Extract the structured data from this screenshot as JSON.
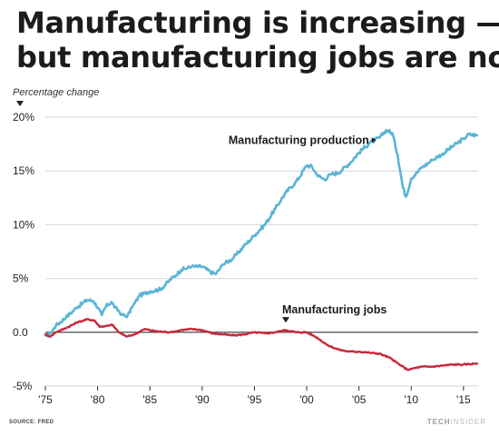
{
  "headline": {
    "line1": "Manufacturing is increasing —",
    "line2": "but manufacturing jobs are not"
  },
  "footer": {
    "source": "SOURCE: FRED",
    "brand_part1": "TECH",
    "brand_part2": "INSIDER"
  },
  "chart_data": {
    "type": "line",
    "ylabel": "Percentage change",
    "ylim": [
      -5,
      20
    ],
    "yticks": [
      {
        "value": 20,
        "label": "20%"
      },
      {
        "value": 15,
        "label": "15%"
      },
      {
        "value": 10,
        "label": "10%"
      },
      {
        "value": 5,
        "label": "5%"
      },
      {
        "value": 0,
        "label": "0.0"
      },
      {
        "value": -5,
        "label": "-5%"
      }
    ],
    "xlim": [
      1975,
      2016.4
    ],
    "xticks": [
      {
        "value": 1975,
        "label": "'75"
      },
      {
        "value": 1980,
        "label": "'80"
      },
      {
        "value": 1985,
        "label": "'85"
      },
      {
        "value": 1990,
        "label": "'90"
      },
      {
        "value": 1995,
        "label": "'95"
      },
      {
        "value": 2000,
        "label": "'00"
      },
      {
        "value": 2005,
        "label": "'05"
      },
      {
        "value": 2010,
        "label": "'10"
      },
      {
        "value": 2015,
        "label": "'15"
      }
    ],
    "grid": "horizontal",
    "series": [
      {
        "name": "Manufacturing production",
        "color": "#5ab4d6",
        "annotation": {
          "x": 2007.7,
          "y": 18.2,
          "text": "Manufacturing production",
          "arrow": "right"
        },
        "points": [
          [
            1975,
            -0.3
          ],
          [
            1975.5,
            -0.1
          ],
          [
            1976,
            0.6
          ],
          [
            1977,
            1.4
          ],
          [
            1978,
            2.3
          ],
          [
            1979,
            3.0
          ],
          [
            1979.6,
            2.9
          ],
          [
            1980,
            2.3
          ],
          [
            1980.4,
            1.6
          ],
          [
            1980.8,
            2.4
          ],
          [
            1981.3,
            2.8
          ],
          [
            1981.7,
            2.3
          ],
          [
            1982.3,
            1.7
          ],
          [
            1982.8,
            1.4
          ],
          [
            1983.3,
            2.3
          ],
          [
            1984,
            3.4
          ],
          [
            1985,
            3.8
          ],
          [
            1986,
            4.0
          ],
          [
            1987,
            4.9
          ],
          [
            1988,
            5.8
          ],
          [
            1989,
            6.1
          ],
          [
            1990,
            6.1
          ],
          [
            1990.8,
            5.6
          ],
          [
            1991.3,
            5.4
          ],
          [
            1992,
            6.3
          ],
          [
            1993,
            6.9
          ],
          [
            1994,
            8.0
          ],
          [
            1995,
            9.0
          ],
          [
            1996,
            10.0
          ],
          [
            1997,
            11.5
          ],
          [
            1998,
            13.0
          ],
          [
            1999,
            14.0
          ],
          [
            2000,
            15.5
          ],
          [
            2000.5,
            15.4
          ],
          [
            2001,
            14.6
          ],
          [
            2001.7,
            14.2
          ],
          [
            2002.3,
            14.7
          ],
          [
            2003,
            14.8
          ],
          [
            2004,
            15.6
          ],
          [
            2005,
            16.7
          ],
          [
            2006,
            17.6
          ],
          [
            2007,
            18.1
          ],
          [
            2007.6,
            18.8
          ],
          [
            2008.2,
            18.5
          ],
          [
            2008.7,
            16.5
          ],
          [
            2009.2,
            13.5
          ],
          [
            2009.5,
            12.6
          ],
          [
            2010,
            14.3
          ],
          [
            2011,
            15.3
          ],
          [
            2012,
            16.0
          ],
          [
            2013,
            16.6
          ],
          [
            2014,
            17.3
          ],
          [
            2015,
            18.0
          ],
          [
            2015.5,
            18.4
          ],
          [
            2016.3,
            18.3
          ]
        ]
      },
      {
        "name": "Manufacturing jobs",
        "color": "#c8283a",
        "annotation": {
          "x": 1998,
          "y": 0.4,
          "text": "Manufacturing jobs",
          "arrow": "down"
        },
        "points": [
          [
            1975,
            -0.2
          ],
          [
            1975.5,
            -0.4
          ],
          [
            1976,
            0.0
          ],
          [
            1977,
            0.4
          ],
          [
            1978,
            0.9
          ],
          [
            1979,
            1.2
          ],
          [
            1979.7,
            1.1
          ],
          [
            1980.2,
            0.5
          ],
          [
            1980.8,
            0.6
          ],
          [
            1981.4,
            0.7
          ],
          [
            1982,
            0.0
          ],
          [
            1982.8,
            -0.4
          ],
          [
            1983.5,
            -0.2
          ],
          [
            1984.5,
            0.3
          ],
          [
            1985.5,
            0.1
          ],
          [
            1987,
            0.0
          ],
          [
            1988,
            0.2
          ],
          [
            1989,
            0.3
          ],
          [
            1990,
            0.2
          ],
          [
            1991,
            -0.1
          ],
          [
            1992,
            -0.2
          ],
          [
            1993,
            -0.3
          ],
          [
            1994,
            -0.2
          ],
          [
            1995,
            0.0
          ],
          [
            1996,
            -0.1
          ],
          [
            1997,
            0.0
          ],
          [
            1998,
            0.2
          ],
          [
            1999,
            0.0
          ],
          [
            2000,
            0.0
          ],
          [
            2001,
            -0.5
          ],
          [
            2002,
            -1.2
          ],
          [
            2003,
            -1.6
          ],
          [
            2004,
            -1.8
          ],
          [
            2005,
            -1.8
          ],
          [
            2006,
            -1.9
          ],
          [
            2007,
            -2.0
          ],
          [
            2008,
            -2.4
          ],
          [
            2009,
            -3.1
          ],
          [
            2009.7,
            -3.5
          ],
          [
            2010,
            -3.4
          ],
          [
            2011,
            -3.2
          ],
          [
            2012,
            -3.2
          ],
          [
            2013,
            -3.1
          ],
          [
            2014,
            -3.0
          ],
          [
            2015,
            -3.0
          ],
          [
            2016.3,
            -2.9
          ]
        ]
      }
    ]
  }
}
